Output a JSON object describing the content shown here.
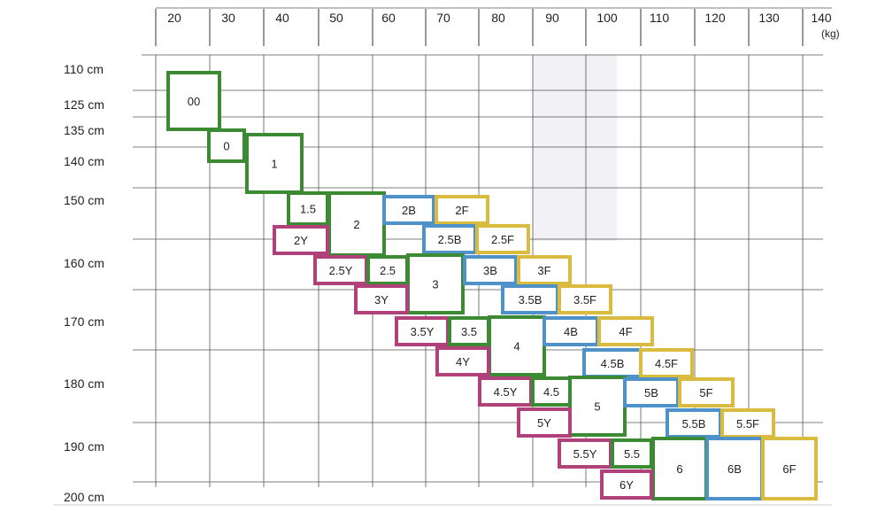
{
  "chart_data": {
    "type": "size-chart",
    "x_unit": "(kg)",
    "x_ticks": [
      "20",
      "30",
      "40",
      "50",
      "60",
      "70",
      "80",
      "90",
      "100",
      "110",
      "120",
      "130",
      "140"
    ],
    "y_ticks": [
      "110 cm",
      "125 cm",
      "135 cm",
      "140 cm",
      "150 cm",
      "160 cm",
      "170 cm",
      "180 cm",
      "190 cm",
      "200 cm"
    ],
    "series_colors": {
      "standard": "#3c8a34",
      "Y": "#b0417a",
      "B": "#4f91c9",
      "F": "#d9bb40"
    },
    "sizes": [
      {
        "label": "00",
        "type": "standard"
      },
      {
        "label": "0",
        "type": "standard"
      },
      {
        "label": "1",
        "type": "standard"
      },
      {
        "label": "1.5",
        "type": "standard"
      },
      {
        "label": "2",
        "type": "standard"
      },
      {
        "label": "2B",
        "type": "B"
      },
      {
        "label": "2F",
        "type": "F"
      },
      {
        "label": "2Y",
        "type": "Y"
      },
      {
        "label": "2.5B",
        "type": "B"
      },
      {
        "label": "2.5F",
        "type": "F"
      },
      {
        "label": "2.5Y",
        "type": "Y"
      },
      {
        "label": "2.5",
        "type": "standard"
      },
      {
        "label": "3",
        "type": "standard"
      },
      {
        "label": "3B",
        "type": "B"
      },
      {
        "label": "3F",
        "type": "F"
      },
      {
        "label": "3Y",
        "type": "Y"
      },
      {
        "label": "3.5B",
        "type": "B"
      },
      {
        "label": "3.5F",
        "type": "F"
      },
      {
        "label": "3.5Y",
        "type": "Y"
      },
      {
        "label": "3.5",
        "type": "standard"
      },
      {
        "label": "4",
        "type": "standard"
      },
      {
        "label": "4B",
        "type": "B"
      },
      {
        "label": "4F",
        "type": "F"
      },
      {
        "label": "4Y",
        "type": "Y"
      },
      {
        "label": "4.5B",
        "type": "B"
      },
      {
        "label": "4.5F",
        "type": "F"
      },
      {
        "label": "4.5Y",
        "type": "Y"
      },
      {
        "label": "4.5",
        "type": "standard"
      },
      {
        "label": "5",
        "type": "standard"
      },
      {
        "label": "5B",
        "type": "B"
      },
      {
        "label": "5F",
        "type": "F"
      },
      {
        "label": "5Y",
        "type": "Y"
      },
      {
        "label": "5.5B",
        "type": "B"
      },
      {
        "label": "5.5F",
        "type": "F"
      },
      {
        "label": "5.5Y",
        "type": "Y"
      },
      {
        "label": "5.5",
        "type": "standard"
      },
      {
        "label": "6",
        "type": "standard"
      },
      {
        "label": "6B",
        "type": "B"
      },
      {
        "label": "6F",
        "type": "F"
      },
      {
        "label": "6Y",
        "type": "Y"
      }
    ]
  }
}
